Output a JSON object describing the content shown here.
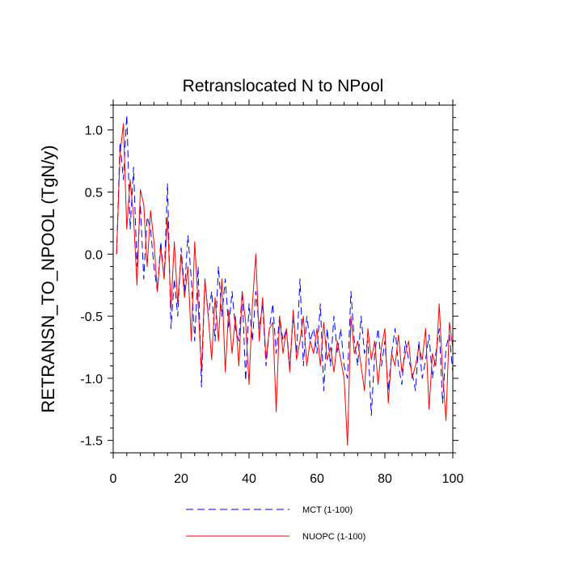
{
  "chart_data": {
    "type": "line",
    "title": "Retranslocated N to NPool",
    "xlabel": "",
    "ylabel": "RETRANSN_TO_NPOOL  (TgN/y)",
    "xlim": [
      0,
      100
    ],
    "ylim": [
      -1.6,
      1.2
    ],
    "x_ticks": [
      0,
      20,
      40,
      60,
      80,
      100
    ],
    "x_tick_labels": [
      "0",
      "20",
      "40",
      "60",
      "80",
      "100"
    ],
    "y_ticks": [
      -1.5,
      -1.0,
      -0.5,
      0.0,
      0.5,
      1.0
    ],
    "y_tick_labels": [
      "-1.5",
      "-1.0",
      "-0.5",
      "0.0",
      "0.5",
      "1.0"
    ],
    "grid": false,
    "legend_position": "bottom-center",
    "series": [
      {
        "name": "MCT (1-100)",
        "color": "#0000ff",
        "dash": "dashed",
        "x": [
          1,
          2,
          3,
          4,
          5,
          6,
          7,
          8,
          9,
          10,
          11,
          12,
          13,
          14,
          15,
          16,
          17,
          18,
          19,
          20,
          21,
          22,
          23,
          24,
          25,
          26,
          27,
          28,
          29,
          30,
          31,
          32,
          33,
          34,
          35,
          36,
          37,
          38,
          39,
          40,
          41,
          42,
          43,
          44,
          45,
          46,
          47,
          48,
          49,
          50,
          51,
          52,
          53,
          54,
          55,
          56,
          57,
          58,
          59,
          60,
          61,
          62,
          63,
          64,
          65,
          66,
          67,
          68,
          69,
          70,
          71,
          72,
          73,
          74,
          75,
          76,
          77,
          78,
          79,
          80,
          81,
          82,
          83,
          84,
          85,
          86,
          87,
          88,
          89,
          90,
          91,
          92,
          93,
          94,
          95,
          96,
          97,
          98,
          99,
          100
        ],
        "values": [
          0.0,
          0.9,
          0.6,
          1.12,
          0.2,
          0.7,
          -0.1,
          0.4,
          -0.2,
          0.3,
          0.2,
          -0.1,
          -0.3,
          0.1,
          -0.2,
          0.57,
          -0.6,
          -0.2,
          -0.5,
          0.05,
          -0.3,
          0.15,
          -0.2,
          -0.7,
          -0.1,
          -1.07,
          -0.2,
          -0.5,
          -0.3,
          -0.7,
          -0.1,
          -0.5,
          -0.2,
          -0.6,
          -0.3,
          -0.6,
          -0.7,
          -0.3,
          -1.02,
          -0.4,
          -0.7,
          -0.3,
          -0.6,
          -0.4,
          -0.9,
          -0.6,
          -0.4,
          -0.8,
          -0.5,
          -0.7,
          -0.6,
          -0.9,
          -0.5,
          -0.8,
          -0.2,
          -0.9,
          -0.5,
          -0.7,
          -0.6,
          -0.8,
          -0.4,
          -1.1,
          -0.6,
          -0.9,
          -0.5,
          -0.8,
          -0.6,
          -0.9,
          -1.0,
          -0.3,
          -0.7,
          -0.9,
          -0.5,
          -0.8,
          -0.7,
          -1.3,
          -0.8,
          -0.6,
          -0.9,
          -0.7,
          -1.1,
          -0.8,
          -0.6,
          -0.9,
          -1.05,
          -0.7,
          -0.85,
          -0.95,
          -1.1,
          -0.7,
          -1.0,
          -0.85,
          -0.65,
          -1.0,
          -0.8,
          -0.6,
          -1.2,
          -0.75,
          -0.65,
          -0.95
        ]
      },
      {
        "name": "NUOPC (1-100)",
        "color": "#ff0000",
        "dash": "solid",
        "x": [
          1,
          2,
          3,
          4,
          5,
          6,
          7,
          8,
          9,
          10,
          11,
          12,
          13,
          14,
          15,
          16,
          17,
          18,
          19,
          20,
          21,
          22,
          23,
          24,
          25,
          26,
          27,
          28,
          29,
          30,
          31,
          32,
          33,
          34,
          35,
          36,
          37,
          38,
          39,
          40,
          41,
          42,
          43,
          44,
          45,
          46,
          47,
          48,
          49,
          50,
          51,
          52,
          53,
          54,
          55,
          56,
          57,
          58,
          59,
          60,
          61,
          62,
          63,
          64,
          65,
          66,
          67,
          68,
          69,
          70,
          71,
          72,
          73,
          74,
          75,
          76,
          77,
          78,
          79,
          80,
          81,
          82,
          83,
          84,
          85,
          86,
          87,
          88,
          89,
          90,
          91,
          92,
          93,
          94,
          95,
          96,
          97,
          98,
          99,
          100
        ],
        "values": [
          0.0,
          0.8,
          1.05,
          0.2,
          0.6,
          0.3,
          -0.25,
          0.52,
          0.4,
          -0.1,
          0.35,
          0.1,
          -0.3,
          0.05,
          -0.2,
          0.3,
          -0.45,
          0.1,
          -0.4,
          0.0,
          -0.35,
          -0.1,
          -0.7,
          0.1,
          -0.4,
          -0.95,
          -0.2,
          -0.5,
          -0.85,
          -0.35,
          -0.7,
          -0.2,
          -0.95,
          -0.45,
          -0.8,
          -0.5,
          -0.9,
          -0.3,
          -0.55,
          -1.05,
          -0.4,
          0.0,
          -0.7,
          -0.35,
          -0.85,
          -0.6,
          -0.55,
          -1.27,
          -0.5,
          -0.8,
          -0.6,
          -0.95,
          -0.45,
          -0.85,
          -0.7,
          -0.5,
          -0.9,
          -0.7,
          -0.8,
          -0.6,
          -0.9,
          -0.55,
          -0.85,
          -0.75,
          -0.95,
          -0.7,
          -0.85,
          -1.0,
          -1.54,
          -0.5,
          -0.8,
          -0.7,
          -0.9,
          -1.1,
          -0.6,
          -0.85,
          -0.7,
          -1.05,
          -0.75,
          -0.6,
          -1.2,
          -0.8,
          -0.9,
          -0.65,
          -0.95,
          -0.8,
          -0.7,
          -1.0,
          -0.9,
          -0.75,
          -0.85,
          -0.6,
          -1.25,
          -0.8,
          -0.9,
          -0.4,
          -0.95,
          -1.34,
          -0.55,
          -0.75
        ]
      }
    ]
  }
}
